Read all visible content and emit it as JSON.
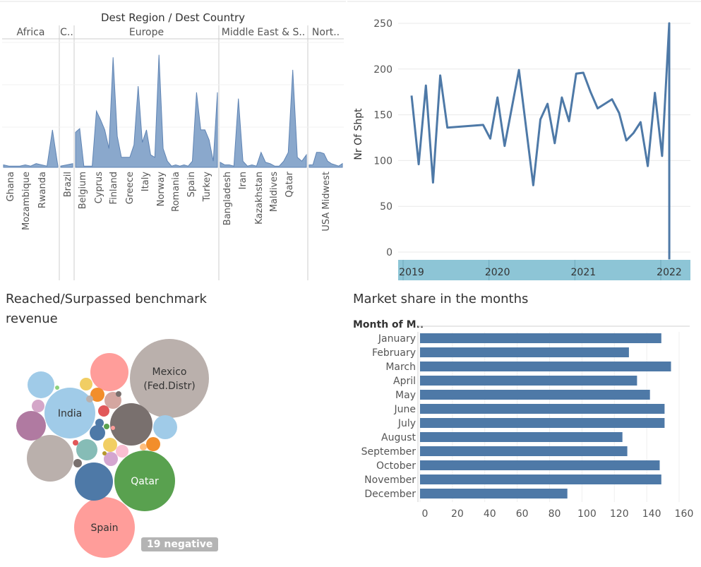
{
  "area": {
    "header": "Dest Region  /  Dest Country",
    "regions": [
      {
        "label": "Africa"
      },
      {
        "label": "C.."
      },
      {
        "label": "Europe"
      },
      {
        "label": "Middle East & S.."
      },
      {
        "label": "Nort.."
      }
    ],
    "country_labels": [
      "Ghana",
      "Mozambique",
      "Rwanda",
      "Brazil",
      "Belgium",
      "Cyprus",
      "Finland",
      "Greece",
      "Italy",
      "Norway",
      "Romania",
      "Spain",
      "Turkey",
      "Bangladesh",
      "Iran",
      "Kazakhstan",
      "Maldives",
      "Qatar",
      "USA Midwest"
    ]
  },
  "timeline": {
    "ylabel": "Nr Of Shpt",
    "year_labels": [
      "2019",
      "2020",
      "2021",
      "2022"
    ]
  },
  "bubbles": {
    "title": "Reached/Surpassed benchmark revenue",
    "negative_badge": "19 negative",
    "labels": [
      "Mexico (Fed.Distr)",
      "India",
      "Qatar",
      "Spain"
    ]
  },
  "market": {
    "title": "Market share in the months",
    "column_header": "Month of M.."
  },
  "chart_data": [
    {
      "type": "area",
      "title": "Dest Region / Dest Country",
      "segments": [
        {
          "region": "Africa",
          "values": [
            2,
            1,
            1,
            1,
            2,
            1,
            3,
            2,
            1,
            30,
            1
          ]
        },
        {
          "region": "C..",
          "values": [
            1,
            2,
            3
          ]
        },
        {
          "region": "Europe",
          "values": [
            28,
            31,
            1,
            1,
            1,
            45,
            38,
            30,
            15,
            88,
            25,
            8,
            8,
            8,
            18,
            65,
            20,
            30,
            10,
            8,
            90,
            15,
            5,
            1,
            2,
            1,
            2,
            1,
            5,
            60,
            30,
            30,
            22,
            5,
            60
          ]
        },
        {
          "region": "Middle East & S..",
          "values": [
            4,
            2,
            2,
            1,
            55,
            5,
            1,
            2,
            1,
            12,
            4,
            3,
            1,
            1,
            5,
            12,
            78,
            8,
            5,
            10
          ]
        },
        {
          "region": "Nort..",
          "values": [
            2,
            2,
            12,
            12,
            11,
            5,
            3,
            2,
            1,
            3
          ]
        }
      ]
    },
    {
      "type": "line",
      "ylabel": "Nr Of Shpt",
      "ylim": [
        0,
        250
      ],
      "x": [
        "2019-01",
        "2019-02",
        "2019-03",
        "2019-04",
        "2019-05",
        "2019-06",
        "2019-11",
        "2019-12",
        "2020-01",
        "2020-02",
        "2020-04",
        "2020-06",
        "2020-07",
        "2020-08",
        "2020-09",
        "2020-10",
        "2020-11",
        "2020-12",
        "2021-01",
        "2021-02",
        "2021-03",
        "2021-05",
        "2021-06",
        "2021-07",
        "2021-08",
        "2021-09",
        "2021-10",
        "2021-11",
        "2021-12",
        "2022-01"
      ],
      "series": [
        {
          "values": [
            171,
            96,
            182,
            76,
            193,
            136,
            139,
            124,
            169,
            116,
            199,
            73,
            145,
            162,
            119,
            169,
            143,
            195,
            196,
            175,
            157,
            167,
            152,
            122,
            130,
            142,
            94,
            174,
            105,
            250
          ]
        }
      ],
      "last_point": {
        "x": "2022-02",
        "value": -8
      }
    },
    {
      "type": "bubble",
      "title": "Reached/Surpassed benchmark revenue",
      "labels": [
        "Mexico (Fed.Distr)",
        "India",
        "Qatar",
        "Spain"
      ],
      "negative_count": 19
    },
    {
      "type": "bar",
      "title": "Market share in the months",
      "categories": [
        "January",
        "February",
        "March",
        "April",
        "May",
        "June",
        "July",
        "August",
        "September",
        "October",
        "November",
        "December"
      ],
      "values": [
        149,
        129,
        155,
        134,
        142,
        151,
        151,
        125,
        128,
        148,
        149,
        91
      ],
      "xlim": [
        0,
        160
      ],
      "ticks": [
        0,
        20,
        40,
        60,
        80,
        100,
        120,
        140,
        160
      ],
      "color": "#4e79a7"
    }
  ],
  "colors": {
    "area_fill": "#8aa8cc",
    "area_line": "#5f84b4",
    "line": "#4e79a7",
    "bar": "#4e79a7",
    "timeline_band": "#8dc5d6",
    "grid": "#e8e8e8",
    "divider": "#cccccc"
  }
}
